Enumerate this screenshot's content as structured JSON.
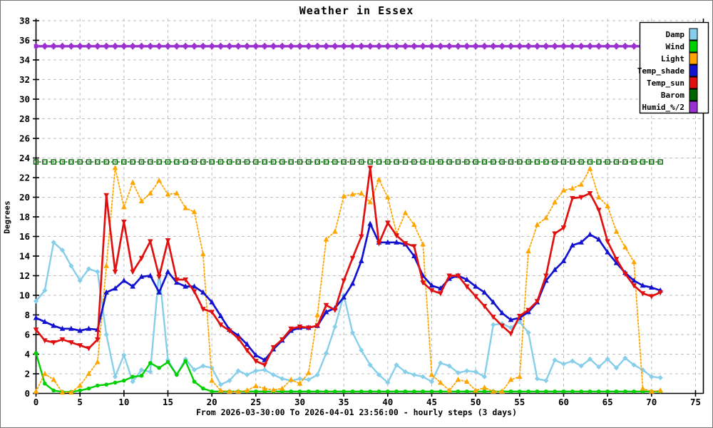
{
  "figure": {
    "title": "Weather in Essex",
    "caption": "From 2026-03-30:00 To 2026-04-01 23:56:00 - hourly steps (3 days)",
    "y_axis_label": "Degrees"
  },
  "colors": {
    "background": "#ffffff",
    "grid": "#bdbdbd",
    "axis": "#000000",
    "frame": "#777777",
    "damp": "#87ceeb",
    "wind": "#00cf00",
    "light": "#ffa500",
    "temp_shade": "#1212cf",
    "temp_sun": "#e01010",
    "barom": "#006400",
    "humid": "#9a30d0"
  },
  "chart_data": {
    "type": "line",
    "title": "Weather in Essex",
    "xlabel": "From 2026-03-30:00 To 2026-04-01 23:56:00 - hourly steps (3 days)",
    "ylabel": "Degrees",
    "x_description": "hour index 0..71, hourly samples over 3 days",
    "n_points": 72,
    "xlim": [
      0,
      76
    ],
    "ylim": [
      0,
      38
    ],
    "x_ticks": [
      0,
      5,
      10,
      15,
      20,
      25,
      30,
      35,
      40,
      45,
      50,
      55,
      60,
      65,
      70,
      75
    ],
    "y_ticks": [
      0,
      2,
      4,
      6,
      8,
      10,
      12,
      14,
      16,
      18,
      20,
      22,
      24,
      26,
      28,
      30,
      32,
      34,
      36,
      38
    ],
    "grid": true,
    "legend_position": "top-right",
    "series": [
      {
        "name": "Damp",
        "color": "#87ceeb",
        "line_style": "solid",
        "marker": "diamond",
        "values": [
          9.4,
          10.5,
          15.4,
          14.6,
          13.0,
          11.5,
          12.7,
          12.4,
          6.0,
          1.7,
          3.9,
          1.2,
          2.4,
          2.2,
          12.5,
          3.4,
          1.9,
          3.5,
          2.4,
          2.8,
          2.6,
          0.9,
          1.3,
          2.3,
          1.9,
          2.3,
          2.4,
          1.9,
          1.5,
          1.3,
          1.5,
          1.4,
          1.9,
          4.1,
          6.8,
          10.0,
          6.2,
          4.4,
          2.9,
          1.9,
          1.1,
          2.9,
          2.2,
          1.9,
          1.7,
          1.2,
          3.1,
          2.8,
          2.1,
          2.3,
          2.2,
          1.7,
          7.0,
          7.1,
          6.7,
          7.3,
          6.2,
          1.5,
          1.3,
          3.4,
          3.0,
          3.3,
          2.8,
          3.5,
          2.7,
          3.5,
          2.6,
          3.6,
          2.9,
          2.4,
          1.7,
          1.6
        ]
      },
      {
        "name": "Wind",
        "color": "#00cf00",
        "line_style": "solid",
        "marker": "circle",
        "values": [
          4.1,
          1.0,
          0.3,
          0.15,
          0.15,
          0.3,
          0.5,
          0.8,
          0.9,
          1.1,
          1.3,
          1.7,
          1.8,
          3.1,
          2.6,
          3.2,
          1.9,
          3.3,
          1.2,
          0.5,
          0.2,
          0.2,
          0.2,
          0.2,
          0.2,
          0.2,
          0.2,
          0.2,
          0.2,
          0.2,
          0.2,
          0.2,
          0.2,
          0.2,
          0.2,
          0.2,
          0.2,
          0.2,
          0.2,
          0.2,
          0.2,
          0.2,
          0.2,
          0.2,
          0.2,
          0.2,
          0.2,
          0.2,
          0.2,
          0.2,
          0.2,
          0.2,
          0.2,
          0.2,
          0.2,
          0.2,
          0.2,
          0.2,
          0.2,
          0.2,
          0.2,
          0.2,
          0.2,
          0.2,
          0.2,
          0.2,
          0.2,
          0.2,
          0.2,
          0.2,
          0.2,
          0.2
        ]
      },
      {
        "name": "Light",
        "color": "#ffa500",
        "line_style": "dotted",
        "marker": "triangle-up",
        "values": [
          0.2,
          2.0,
          1.4,
          0.1,
          0.1,
          0.8,
          2.0,
          3.2,
          13.0,
          23.0,
          19.0,
          21.5,
          19.6,
          20.4,
          21.7,
          20.3,
          20.4,
          18.9,
          18.5,
          14.2,
          1.3,
          0.3,
          0.2,
          0.2,
          0.3,
          0.75,
          0.5,
          0.35,
          0.5,
          1.4,
          1.0,
          2.1,
          8.0,
          15.7,
          16.5,
          20.1,
          20.3,
          20.4,
          19.5,
          21.8,
          20.0,
          16.3,
          18.4,
          17.2,
          15.2,
          1.9,
          1.1,
          0.3,
          1.4,
          1.2,
          0.3,
          0.6,
          0.2,
          0.2,
          1.4,
          1.7,
          14.5,
          17.2,
          17.9,
          19.5,
          20.7,
          20.9,
          21.3,
          22.9,
          20.0,
          19.1,
          16.5,
          14.9,
          13.4,
          0.5,
          0.2,
          0.3
        ]
      },
      {
        "name": "Temp_shade",
        "color": "#1212cf",
        "line_style": "solid",
        "marker": "triangle-up",
        "values": [
          7.7,
          7.3,
          6.9,
          6.6,
          6.6,
          6.4,
          6.6,
          6.5,
          10.3,
          10.7,
          11.5,
          10.9,
          11.9,
          12.0,
          10.3,
          12.4,
          11.3,
          10.9,
          10.9,
          10.3,
          9.3,
          7.9,
          6.5,
          5.9,
          5.0,
          3.9,
          3.4,
          4.5,
          5.4,
          6.4,
          6.7,
          6.7,
          6.9,
          8.3,
          8.7,
          9.8,
          11.2,
          13.5,
          17.3,
          15.4,
          15.4,
          15.4,
          15.2,
          14.0,
          12.0,
          11.0,
          10.7,
          11.7,
          12.0,
          11.6,
          10.9,
          10.3,
          9.3,
          8.2,
          7.5,
          7.7,
          8.3,
          9.3,
          11.5,
          12.6,
          13.5,
          15.1,
          15.4,
          16.2,
          15.7,
          14.4,
          13.3,
          12.3,
          11.5,
          11.0,
          10.8,
          10.5
        ]
      },
      {
        "name": "Temp_sun",
        "color": "#e01010",
        "line_style": "solid",
        "marker": "triangle-down",
        "values": [
          6.5,
          5.4,
          5.2,
          5.5,
          5.2,
          4.9,
          4.6,
          5.5,
          20.2,
          12.4,
          17.5,
          12.4,
          13.8,
          15.5,
          11.9,
          15.6,
          11.6,
          11.6,
          10.4,
          8.6,
          8.3,
          7.0,
          6.4,
          5.6,
          4.4,
          3.3,
          2.9,
          4.7,
          5.5,
          6.6,
          6.8,
          6.7,
          6.9,
          9.0,
          8.5,
          11.5,
          13.8,
          16.0,
          23.0,
          15.3,
          17.4,
          16.1,
          15.3,
          15.0,
          11.3,
          10.5,
          10.2,
          12.0,
          12.0,
          10.9,
          9.9,
          8.9,
          7.8,
          6.9,
          6.1,
          7.9,
          8.5,
          9.4,
          12.0,
          16.3,
          16.9,
          19.9,
          20.0,
          20.4,
          18.7,
          15.5,
          13.7,
          12.2,
          11.0,
          10.2,
          9.9,
          10.3
        ]
      },
      {
        "name": "Barom",
        "color": "#006400",
        "line_style": "dotted",
        "marker": "open-square",
        "constant_value": 23.6
      },
      {
        "name": "Humid_%/2",
        "color": "#9a30d0",
        "line_style": "solid",
        "marker": "tick-square",
        "constant_value": 35.4
      }
    ]
  }
}
